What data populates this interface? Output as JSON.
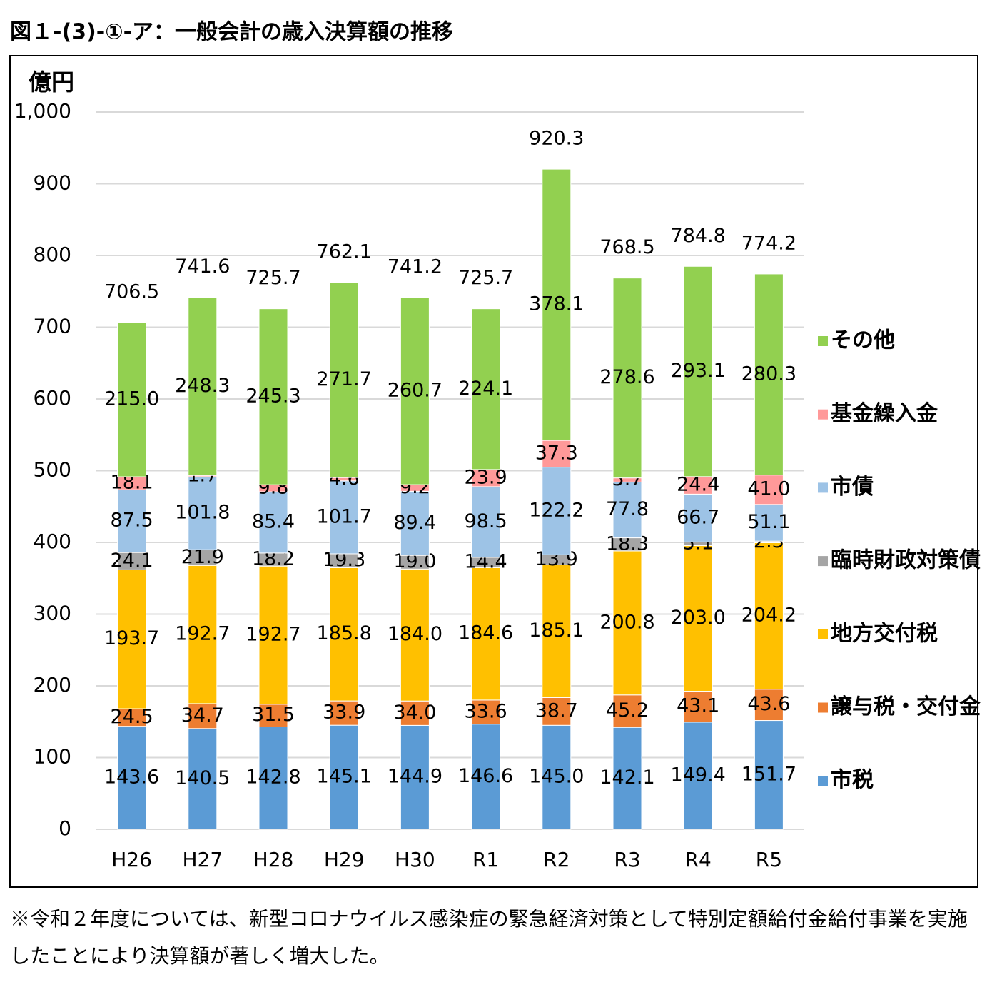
{
  "chart_data": {
    "type": "stacked-bar",
    "title": "図１-(3)-①-ア：一般会計の歳入決算額の推移",
    "y_label": "億円",
    "note": "※令和２年度については、新型コロナウイルス感染症の緊急経済対策として特別定額給付金給付事業を実施したことにより決算額が著しく増大した。",
    "categories": [
      "H26",
      "H27",
      "H28",
      "H29",
      "H30",
      "R1",
      "R2",
      "R3",
      "R4",
      "R5"
    ],
    "ylim": [
      0,
      1000
    ],
    "yticks": [
      0,
      100,
      200,
      300,
      400,
      500,
      600,
      700,
      800,
      900,
      {
        "value": 1000,
        "label": "1,000"
      }
    ],
    "grid": true,
    "legend": "right",
    "totals": [
      706.5,
      741.6,
      725.7,
      762.1,
      741.2,
      725.7,
      920.3,
      768.5,
      784.8,
      774.2
    ],
    "series": [
      {
        "name": "市税",
        "color": "#5b9bd5",
        "values": [
          143.6,
          140.5,
          142.8,
          145.1,
          144.9,
          146.6,
          145.0,
          142.1,
          149.4,
          151.7
        ],
        "value_labels": [
          "143.6",
          "140.5",
          "142.8",
          "145.1",
          "144.9",
          "146.6",
          "145.0",
          "142.1",
          "149.4",
          "151.7"
        ]
      },
      {
        "name": "譲与税・交付金",
        "color": "#ed7d31",
        "values": [
          24.5,
          34.7,
          31.5,
          33.9,
          34.0,
          33.6,
          38.7,
          45.2,
          43.1,
          43.6
        ],
        "value_labels": [
          "24.5",
          "34.7",
          "31.5",
          "33.9",
          "34.0",
          "33.6",
          "38.7",
          "45.2",
          "43.1",
          "43.6"
        ]
      },
      {
        "name": "地方交付税",
        "color": "#ffc000",
        "values": [
          193.7,
          192.7,
          192.7,
          185.8,
          184.0,
          184.6,
          185.1,
          200.8,
          203.0,
          204.2
        ],
        "value_labels": [
          "193.7",
          "192.7",
          "192.7",
          "185.8",
          "184.0",
          "184.6",
          "185.1",
          "200.8",
          "203.0",
          "204.2"
        ]
      },
      {
        "name": "臨時財政対策債",
        "color": "#a5a5a5",
        "values": [
          24.1,
          21.9,
          18.2,
          19.3,
          19.0,
          14.4,
          13.9,
          18.3,
          5.1,
          2.3
        ],
        "value_labels": [
          "24.1",
          "21.9",
          "18.2",
          "19.3",
          "19.0",
          "14.4",
          "13.9",
          "18.3",
          "5.1",
          "2.3"
        ]
      },
      {
        "name": "市債",
        "color": "#9dc3e6",
        "values": [
          87.5,
          101.8,
          85.4,
          101.7,
          89.4,
          98.5,
          122.2,
          77.8,
          66.7,
          51.1
        ],
        "value_labels": [
          "87.5",
          "101.8",
          "85.4",
          "101.7",
          "89.4",
          "98.5",
          "122.2",
          "77.8",
          "66.7",
          "51.1"
        ]
      },
      {
        "name": "基金繰入金",
        "color": "#ff9999",
        "values": [
          18.1,
          1.7,
          9.8,
          4.6,
          9.2,
          23.9,
          37.3,
          5.7,
          24.4,
          41.0
        ],
        "value_labels": [
          "18.1",
          "1.7",
          "9.8",
          "4.6",
          "9.2",
          "23.9",
          "37.3",
          "5.7",
          "24.4",
          "41.0"
        ]
      },
      {
        "name": "その他",
        "color": "#92d050",
        "values": [
          215.0,
          248.3,
          245.3,
          271.7,
          260.7,
          224.1,
          378.1,
          278.6,
          293.1,
          280.3
        ],
        "value_labels": [
          "215.0",
          "248.3",
          "245.3",
          "271.7",
          "260.7",
          "224.1",
          "378.1",
          "278.6",
          "293.1",
          "280.3"
        ]
      }
    ]
  }
}
